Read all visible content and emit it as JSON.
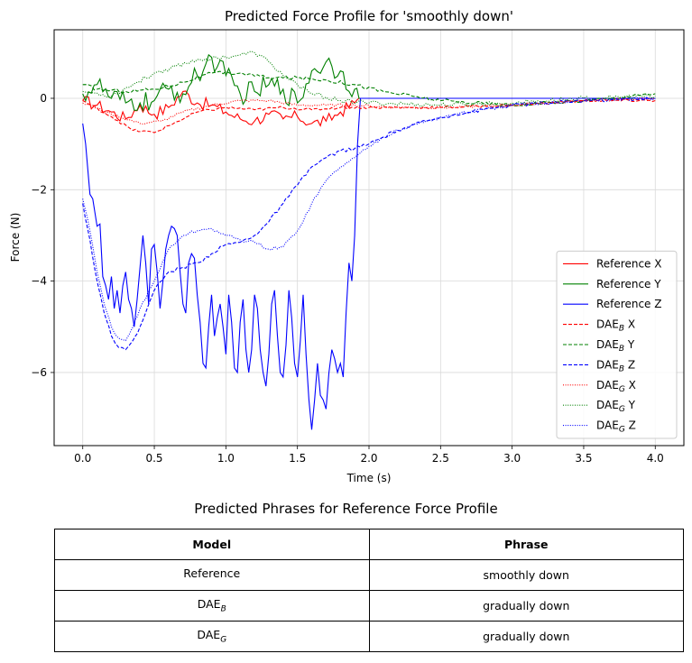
{
  "chart_data": {
    "type": "line",
    "title": "Predicted Force Profile for 'smoothly down'",
    "xlabel": "Time (s)",
    "ylabel": "Force (N)",
    "xlim": [
      -0.2,
      4.2
    ],
    "ylim": [
      -7.6,
      1.5
    ],
    "xticks": [
      0.0,
      0.5,
      1.0,
      1.5,
      2.0,
      2.5,
      3.0,
      3.5,
      4.0
    ],
    "xtick_labels": [
      "0.0",
      "0.5",
      "1.0",
      "1.5",
      "2.0",
      "2.5",
      "3.0",
      "3.5",
      "4.0"
    ],
    "yticks": [
      -6,
      -4,
      -2,
      0
    ],
    "ytick_labels": [
      "−6",
      "−4",
      "−2",
      "0"
    ],
    "grid": true,
    "legend_position": "lower-right",
    "series": [
      {
        "name": "Reference X",
        "legend_base": "Reference X",
        "legend_sub": "",
        "legend_suffix": "",
        "color": "#ff0000",
        "style": "solid",
        "jitter": 0.14,
        "points": [
          [
            0,
            -0.05
          ],
          [
            0.1,
            -0.15
          ],
          [
            0.2,
            -0.3
          ],
          [
            0.3,
            -0.45
          ],
          [
            0.4,
            -0.15
          ],
          [
            0.5,
            -0.35
          ],
          [
            0.6,
            -0.2
          ],
          [
            0.7,
            0.15
          ],
          [
            0.8,
            -0.1
          ],
          [
            0.9,
            -0.15
          ],
          [
            1.0,
            -0.3
          ],
          [
            1.1,
            -0.45
          ],
          [
            1.2,
            -0.5
          ],
          [
            1.3,
            -0.35
          ],
          [
            1.4,
            -0.45
          ],
          [
            1.5,
            -0.4
          ],
          [
            1.6,
            -0.55
          ],
          [
            1.7,
            -0.5
          ],
          [
            1.8,
            -0.3
          ],
          [
            1.9,
            -0.1
          ],
          [
            1.93,
            0.0
          ],
          [
            4.0,
            0.0
          ]
        ]
      },
      {
        "name": "Reference Y",
        "legend_base": "Reference Y",
        "legend_sub": "",
        "legend_suffix": "",
        "color": "#008000",
        "style": "solid",
        "jitter": 0.25,
        "points": [
          [
            0,
            0.1
          ],
          [
            0.1,
            0.3
          ],
          [
            0.2,
            0.0
          ],
          [
            0.3,
            -0.1
          ],
          [
            0.4,
            -0.1
          ],
          [
            0.5,
            -0.05
          ],
          [
            0.6,
            0.2
          ],
          [
            0.7,
            0.1
          ],
          [
            0.8,
            0.5
          ],
          [
            0.9,
            0.9
          ],
          [
            1.0,
            0.5
          ],
          [
            1.1,
            0.1
          ],
          [
            1.2,
            0.15
          ],
          [
            1.3,
            0.3
          ],
          [
            1.4,
            0.2
          ],
          [
            1.5,
            -0.1
          ],
          [
            1.6,
            0.6
          ],
          [
            1.7,
            0.8
          ],
          [
            1.8,
            0.6
          ],
          [
            1.9,
            0.2
          ],
          [
            1.93,
            0.0
          ],
          [
            4.0,
            0.0
          ]
        ]
      },
      {
        "name": "Reference Z",
        "legend_base": "Reference Z",
        "legend_sub": "",
        "legend_suffix": "",
        "color": "#0000ff",
        "style": "solid",
        "jitter": 0,
        "points": [
          [
            0.0,
            -0.55
          ],
          [
            0.02,
            -1.0
          ],
          [
            0.05,
            -2.1
          ],
          [
            0.07,
            -2.2
          ],
          [
            0.1,
            -2.8
          ],
          [
            0.12,
            -2.75
          ],
          [
            0.14,
            -3.9
          ],
          [
            0.16,
            -4.1
          ],
          [
            0.18,
            -4.4
          ],
          [
            0.2,
            -3.9
          ],
          [
            0.22,
            -4.6
          ],
          [
            0.24,
            -4.2
          ],
          [
            0.26,
            -4.7
          ],
          [
            0.28,
            -4.1
          ],
          [
            0.3,
            -3.8
          ],
          [
            0.32,
            -4.4
          ],
          [
            0.34,
            -4.6
          ],
          [
            0.36,
            -5.0
          ],
          [
            0.38,
            -4.4
          ],
          [
            0.4,
            -3.7
          ],
          [
            0.42,
            -3.0
          ],
          [
            0.44,
            -3.6
          ],
          [
            0.46,
            -4.5
          ],
          [
            0.48,
            -3.3
          ],
          [
            0.5,
            -3.2
          ],
          [
            0.52,
            -3.8
          ],
          [
            0.54,
            -4.6
          ],
          [
            0.56,
            -4.0
          ],
          [
            0.58,
            -3.3
          ],
          [
            0.6,
            -3.0
          ],
          [
            0.62,
            -2.8
          ],
          [
            0.64,
            -2.85
          ],
          [
            0.66,
            -3.0
          ],
          [
            0.68,
            -3.8
          ],
          [
            0.7,
            -4.5
          ],
          [
            0.72,
            -4.7
          ],
          [
            0.74,
            -3.6
          ],
          [
            0.76,
            -3.4
          ],
          [
            0.78,
            -3.5
          ],
          [
            0.8,
            -4.3
          ],
          [
            0.82,
            -4.9
          ],
          [
            0.84,
            -5.8
          ],
          [
            0.86,
            -5.9
          ],
          [
            0.88,
            -5.0
          ],
          [
            0.9,
            -4.3
          ],
          [
            0.92,
            -5.2
          ],
          [
            0.94,
            -4.8
          ],
          [
            0.96,
            -4.5
          ],
          [
            0.98,
            -5.0
          ],
          [
            1.0,
            -5.6
          ],
          [
            1.02,
            -4.3
          ],
          [
            1.04,
            -4.9
          ],
          [
            1.06,
            -5.9
          ],
          [
            1.08,
            -6.0
          ],
          [
            1.1,
            -4.9
          ],
          [
            1.12,
            -4.4
          ],
          [
            1.14,
            -5.5
          ],
          [
            1.16,
            -6.0
          ],
          [
            1.18,
            -5.5
          ],
          [
            1.2,
            -4.3
          ],
          [
            1.22,
            -4.6
          ],
          [
            1.24,
            -5.5
          ],
          [
            1.26,
            -6.0
          ],
          [
            1.28,
            -6.3
          ],
          [
            1.3,
            -5.6
          ],
          [
            1.32,
            -4.5
          ],
          [
            1.34,
            -4.2
          ],
          [
            1.36,
            -5.2
          ],
          [
            1.38,
            -6.0
          ],
          [
            1.4,
            -6.1
          ],
          [
            1.42,
            -5.4
          ],
          [
            1.44,
            -4.2
          ],
          [
            1.46,
            -4.8
          ],
          [
            1.48,
            -5.8
          ],
          [
            1.5,
            -6.1
          ],
          [
            1.52,
            -5.3
          ],
          [
            1.54,
            -4.3
          ],
          [
            1.56,
            -5.6
          ],
          [
            1.58,
            -6.6
          ],
          [
            1.6,
            -7.25
          ],
          [
            1.62,
            -6.6
          ],
          [
            1.64,
            -5.8
          ],
          [
            1.66,
            -6.5
          ],
          [
            1.68,
            -6.6
          ],
          [
            1.7,
            -6.8
          ],
          [
            1.72,
            -6.0
          ],
          [
            1.74,
            -5.5
          ],
          [
            1.76,
            -5.7
          ],
          [
            1.78,
            -6.0
          ],
          [
            1.8,
            -5.8
          ],
          [
            1.82,
            -6.1
          ],
          [
            1.84,
            -4.7
          ],
          [
            1.86,
            -3.6
          ],
          [
            1.88,
            -4.0
          ],
          [
            1.9,
            -3.0
          ],
          [
            1.92,
            -1.0
          ],
          [
            1.94,
            0.0
          ],
          [
            4.0,
            0.0
          ]
        ]
      },
      {
        "name": "DAE_B X",
        "legend_base": "DAE",
        "legend_sub": "B",
        "legend_suffix": " X",
        "color": "#ff0000",
        "style": "dashed",
        "jitter": 0.03,
        "points": [
          [
            0,
            -0.05
          ],
          [
            0.2,
            -0.4
          ],
          [
            0.35,
            -0.7
          ],
          [
            0.5,
            -0.75
          ],
          [
            0.6,
            -0.6
          ],
          [
            0.8,
            -0.3
          ],
          [
            1.0,
            -0.2
          ],
          [
            1.2,
            -0.25
          ],
          [
            1.4,
            -0.2
          ],
          [
            1.6,
            -0.25
          ],
          [
            1.8,
            -0.2
          ],
          [
            2.0,
            -0.2
          ],
          [
            2.5,
            -0.2
          ],
          [
            3.0,
            -0.15
          ],
          [
            3.5,
            -0.05
          ],
          [
            4.0,
            -0.05
          ]
        ]
      },
      {
        "name": "DAE_B Y",
        "legend_base": "DAE",
        "legend_sub": "B",
        "legend_suffix": " Y",
        "color": "#008000",
        "style": "dashed",
        "jitter": 0.04,
        "points": [
          [
            0,
            0.3
          ],
          [
            0.1,
            0.2
          ],
          [
            0.3,
            0.15
          ],
          [
            0.5,
            0.2
          ],
          [
            0.7,
            0.35
          ],
          [
            0.9,
            0.55
          ],
          [
            1.1,
            0.55
          ],
          [
            1.3,
            0.45
          ],
          [
            1.5,
            0.45
          ],
          [
            1.7,
            0.4
          ],
          [
            1.9,
            0.3
          ],
          [
            2.1,
            0.15
          ],
          [
            2.3,
            0.05
          ],
          [
            2.5,
            -0.05
          ],
          [
            3.0,
            -0.15
          ],
          [
            3.5,
            -0.05
          ],
          [
            4.0,
            0.1
          ]
        ]
      },
      {
        "name": "DAE_B Z",
        "legend_base": "DAE",
        "legend_sub": "B",
        "legend_suffix": " Z",
        "color": "#0000ff",
        "style": "dashed",
        "jitter": 0.04,
        "points": [
          [
            0,
            -2.3
          ],
          [
            0.05,
            -3.1
          ],
          [
            0.1,
            -4.0
          ],
          [
            0.15,
            -4.7
          ],
          [
            0.2,
            -5.2
          ],
          [
            0.25,
            -5.45
          ],
          [
            0.3,
            -5.5
          ],
          [
            0.35,
            -5.3
          ],
          [
            0.4,
            -5.0
          ],
          [
            0.45,
            -4.6
          ],
          [
            0.5,
            -4.2
          ],
          [
            0.6,
            -3.8
          ],
          [
            0.7,
            -3.7
          ],
          [
            0.8,
            -3.6
          ],
          [
            0.9,
            -3.4
          ],
          [
            1.0,
            -3.2
          ],
          [
            1.1,
            -3.15
          ],
          [
            1.2,
            -3.0
          ],
          [
            1.3,
            -2.7
          ],
          [
            1.4,
            -2.3
          ],
          [
            1.5,
            -1.9
          ],
          [
            1.6,
            -1.5
          ],
          [
            1.7,
            -1.3
          ],
          [
            1.8,
            -1.15
          ],
          [
            1.9,
            -1.1
          ],
          [
            2.0,
            -1.0
          ],
          [
            2.1,
            -0.85
          ],
          [
            2.2,
            -0.7
          ],
          [
            2.4,
            -0.5
          ],
          [
            2.6,
            -0.35
          ],
          [
            2.8,
            -0.25
          ],
          [
            3.0,
            -0.15
          ],
          [
            3.5,
            -0.05
          ],
          [
            4.0,
            0.0
          ]
        ]
      },
      {
        "name": "DAE_G X",
        "legend_base": "DAE",
        "legend_sub": "G",
        "legend_suffix": " X",
        "color": "#ff0000",
        "style": "dotted",
        "jitter": 0.03,
        "points": [
          [
            0,
            -0.1
          ],
          [
            0.2,
            -0.35
          ],
          [
            0.4,
            -0.55
          ],
          [
            0.55,
            -0.5
          ],
          [
            0.7,
            -0.3
          ],
          [
            0.9,
            -0.15
          ],
          [
            1.1,
            -0.05
          ],
          [
            1.3,
            -0.05
          ],
          [
            1.5,
            -0.15
          ],
          [
            1.7,
            -0.15
          ],
          [
            1.9,
            -0.15
          ],
          [
            2.2,
            -0.2
          ],
          [
            2.6,
            -0.2
          ],
          [
            3.0,
            -0.15
          ],
          [
            3.5,
            -0.05
          ],
          [
            4.0,
            0.0
          ]
        ]
      },
      {
        "name": "DAE_G Y",
        "legend_base": "DAE",
        "legend_sub": "G",
        "legend_suffix": " Y",
        "color": "#008000",
        "style": "dotted",
        "jitter": 0.05,
        "points": [
          [
            0,
            0.15
          ],
          [
            0.2,
            0.05
          ],
          [
            0.35,
            0.3
          ],
          [
            0.5,
            0.55
          ],
          [
            0.65,
            0.7
          ],
          [
            0.8,
            0.85
          ],
          [
            1.0,
            0.9
          ],
          [
            1.1,
            0.95
          ],
          [
            1.2,
            1.0
          ],
          [
            1.3,
            0.8
          ],
          [
            1.4,
            0.5
          ],
          [
            1.5,
            0.3
          ],
          [
            1.6,
            0.1
          ],
          [
            1.8,
            -0.05
          ],
          [
            2.0,
            -0.1
          ],
          [
            2.5,
            -0.15
          ],
          [
            3.0,
            -0.1
          ],
          [
            3.5,
            0.0
          ],
          [
            4.0,
            0.05
          ]
        ]
      },
      {
        "name": "DAE_G Z",
        "legend_base": "DAE",
        "legend_sub": "G",
        "legend_suffix": " Z",
        "color": "#0000ff",
        "style": "dotted",
        "jitter": 0.04,
        "points": [
          [
            0,
            -2.2
          ],
          [
            0.05,
            -2.9
          ],
          [
            0.1,
            -3.8
          ],
          [
            0.15,
            -4.5
          ],
          [
            0.2,
            -5.0
          ],
          [
            0.25,
            -5.25
          ],
          [
            0.3,
            -5.3
          ],
          [
            0.35,
            -5.0
          ],
          [
            0.4,
            -4.6
          ],
          [
            0.5,
            -4.0
          ],
          [
            0.6,
            -3.3
          ],
          [
            0.7,
            -3.0
          ],
          [
            0.8,
            -2.9
          ],
          [
            0.9,
            -2.85
          ],
          [
            1.0,
            -3.0
          ],
          [
            1.1,
            -3.1
          ],
          [
            1.2,
            -3.15
          ],
          [
            1.3,
            -3.3
          ],
          [
            1.4,
            -3.25
          ],
          [
            1.5,
            -2.9
          ],
          [
            1.6,
            -2.3
          ],
          [
            1.7,
            -1.8
          ],
          [
            1.8,
            -1.5
          ],
          [
            1.9,
            -1.3
          ],
          [
            2.0,
            -1.05
          ],
          [
            2.1,
            -0.85
          ],
          [
            2.2,
            -0.7
          ],
          [
            2.4,
            -0.5
          ],
          [
            2.6,
            -0.35
          ],
          [
            2.8,
            -0.25
          ],
          [
            3.0,
            -0.15
          ],
          [
            3.5,
            -0.05
          ],
          [
            4.0,
            0.0
          ]
        ]
      }
    ]
  },
  "table": {
    "title": "Predicted Phrases for Reference Force Profile",
    "headers": [
      "Model",
      "Phrase"
    ],
    "rows": [
      {
        "model_base": "Reference",
        "model_sub": "",
        "phrase": "smoothly down"
      },
      {
        "model_base": "DAE",
        "model_sub": "B",
        "phrase": "gradually down"
      },
      {
        "model_base": "DAE",
        "model_sub": "G",
        "phrase": "gradually  down"
      }
    ]
  }
}
